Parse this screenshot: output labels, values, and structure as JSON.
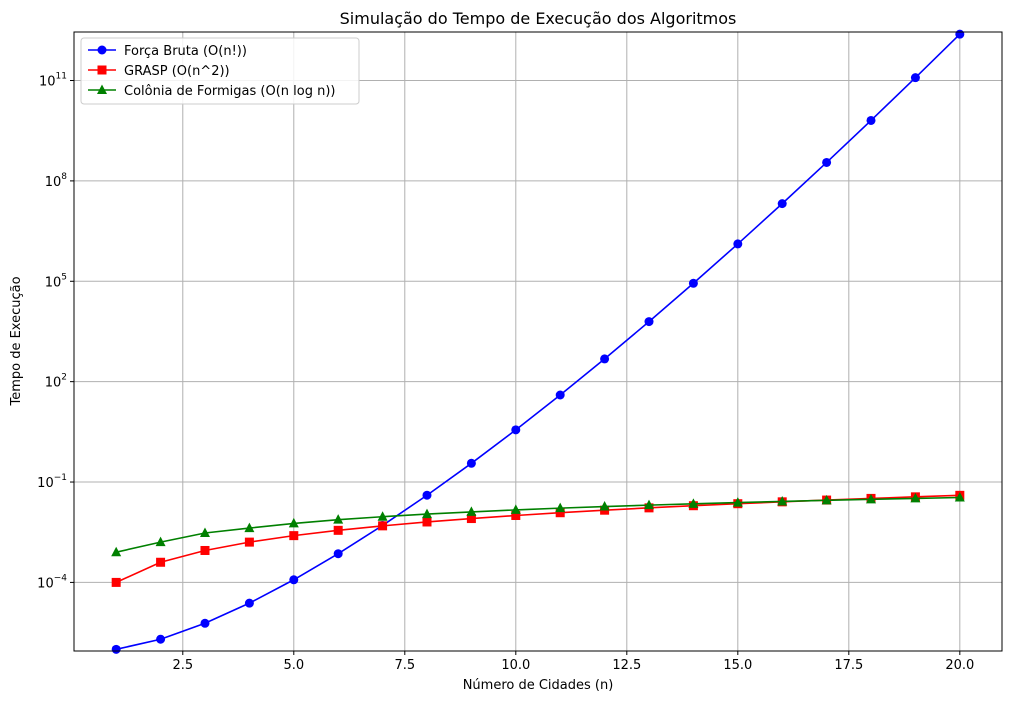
{
  "chart_data": {
    "type": "line",
    "title": "Simulação do Tempo de Execução dos Algoritmos",
    "xlabel": "Número de Cidades (n)",
    "ylabel": "Tempo de Execução",
    "yscale": "log",
    "xlim": [
      0.05,
      20.95
    ],
    "ylim_exp": [
      -6.05,
      12.45
    ],
    "grid": true,
    "legend_position": "upper-left",
    "x_ticks": [
      {
        "value": 2.5,
        "label": "2.5"
      },
      {
        "value": 5.0,
        "label": "5.0"
      },
      {
        "value": 7.5,
        "label": "7.5"
      },
      {
        "value": 10.0,
        "label": "10.0"
      },
      {
        "value": 12.5,
        "label": "12.5"
      },
      {
        "value": 15.0,
        "label": "15.0"
      },
      {
        "value": 17.5,
        "label": "17.5"
      },
      {
        "value": 20.0,
        "label": "20.0"
      }
    ],
    "y_ticks": [
      {
        "exp": -4,
        "base": "10",
        "sup": "−4"
      },
      {
        "exp": -1,
        "base": "10",
        "sup": "−1"
      },
      {
        "exp": 2,
        "base": "10",
        "sup": "2"
      },
      {
        "exp": 5,
        "base": "10",
        "sup": "5"
      },
      {
        "exp": 8,
        "base": "10",
        "sup": "8"
      },
      {
        "exp": 11,
        "base": "10",
        "sup": "11"
      }
    ],
    "x": [
      1,
      2,
      3,
      4,
      5,
      6,
      7,
      8,
      9,
      10,
      11,
      12,
      13,
      14,
      15,
      16,
      17,
      18,
      19,
      20
    ],
    "series": [
      {
        "name": "Força Bruta (O(n!))",
        "color": "#0000ff",
        "marker": "circle",
        "values": [
          1e-06,
          2e-06,
          6e-06,
          2.4e-05,
          0.00012,
          0.00072,
          0.00504,
          0.04032,
          0.36288,
          3.6288,
          39.9168,
          479.0016,
          6227.0208,
          87178.2912,
          1307674.368,
          20922789.888,
          355687428.096,
          6402373705.728,
          121645100408.832,
          2432902008176.64
        ]
      },
      {
        "name": "GRASP (O(n^2))",
        "color": "#ff0000",
        "marker": "square",
        "values": [
          0.0001,
          0.0004,
          0.0009,
          0.0016,
          0.0025,
          0.0036,
          0.0049,
          0.0064,
          0.0081,
          0.01,
          0.0121,
          0.0144,
          0.0169,
          0.0196,
          0.0225,
          0.0256,
          0.0289,
          0.0324,
          0.0361,
          0.04
        ]
      },
      {
        "name": "Colônia de Formigas (O(n log n))",
        "color": "#008000",
        "marker": "triangle",
        "values": [
          0.0008,
          0.0016,
          0.003,
          0.0042,
          0.0058,
          0.0075,
          0.0092,
          0.011,
          0.0128,
          0.0147,
          0.0166,
          0.0185,
          0.0204,
          0.0223,
          0.0243,
          0.0263,
          0.0284,
          0.0304,
          0.0324,
          0.0345
        ]
      }
    ]
  }
}
